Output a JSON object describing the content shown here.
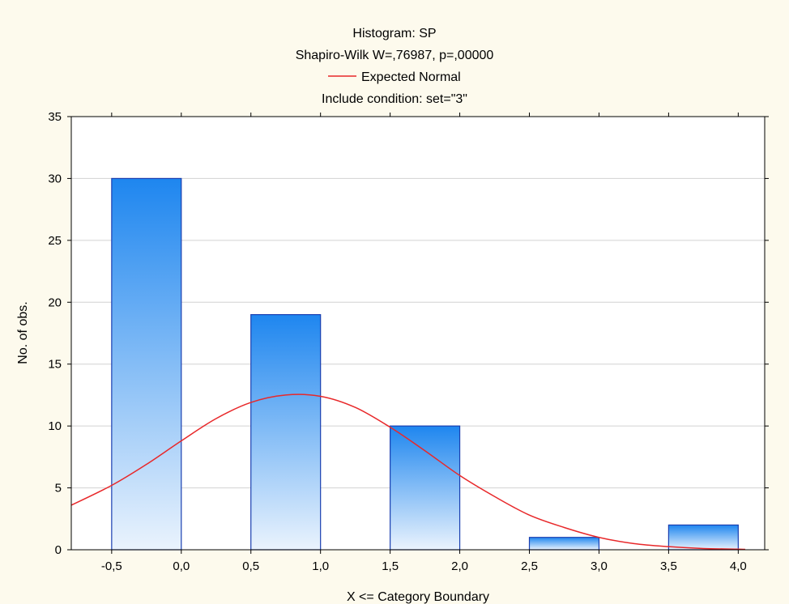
{
  "chart_data": {
    "type": "bar",
    "title_lines": [
      "Histogram: SP",
      "Shapiro-Wilk W=,76987, p=,00000",
      "Include condition: set=\"3\""
    ],
    "legend": {
      "label": "Expected Normal",
      "color": "#e8282a",
      "placement": "top-center"
    },
    "xlabel": "X <= Category Boundary",
    "ylabel": "No. of obs.",
    "x_ticks": [
      -0.5,
      0.0,
      0.5,
      1.0,
      1.5,
      2.0,
      2.5,
      3.0,
      3.5,
      4.0
    ],
    "x_tick_labels": [
      "-0,5",
      "0,0",
      "0,5",
      "1,0",
      "1,5",
      "2,0",
      "2,5",
      "3,0",
      "3,5",
      "4,0"
    ],
    "y_ticks": [
      0,
      5,
      10,
      15,
      20,
      25,
      30,
      35
    ],
    "y_tick_labels": [
      "0",
      "5",
      "10",
      "15",
      "20",
      "25",
      "30",
      "35"
    ],
    "xlim": [
      -0.79,
      4.19
    ],
    "ylim": [
      0,
      35
    ],
    "grid": true,
    "bins": [
      {
        "from": -0.5,
        "to": 0.0,
        "value": 30
      },
      {
        "from": 0.5,
        "to": 1.0,
        "value": 19
      },
      {
        "from": 1.5,
        "to": 2.0,
        "value": 10
      },
      {
        "from": 2.5,
        "to": 3.0,
        "value": 1
      },
      {
        "from": 3.5,
        "to": 4.0,
        "value": 2
      }
    ],
    "expected_normal": {
      "x": [
        -0.79,
        -0.5,
        -0.25,
        0.0,
        0.25,
        0.5,
        0.75,
        1.0,
        1.25,
        1.5,
        1.75,
        2.0,
        2.25,
        2.5,
        2.75,
        3.0,
        3.25,
        3.5,
        3.75,
        4.0,
        4.05
      ],
      "y": [
        3.6,
        5.2,
        6.9,
        8.8,
        10.6,
        11.9,
        12.5,
        12.4,
        11.5,
        9.9,
        8.0,
        6.0,
        4.3,
        2.8,
        1.8,
        1.0,
        0.5,
        0.25,
        0.1,
        0.05,
        0.03
      ]
    },
    "colors": {
      "bar_top": "#1e86ef",
      "bar_bottom": "#eaf3fd",
      "bar_stroke": "#1a3fb0",
      "curve": "#e8282a",
      "grid": "#d2d2d2",
      "plot_bg": "#ffffff",
      "page_bg": "#fdfaed"
    }
  }
}
